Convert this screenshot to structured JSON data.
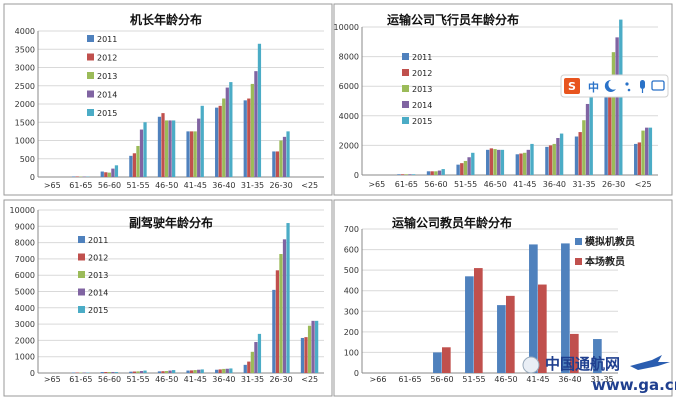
{
  "colors": {
    "2011": "#4f81bd",
    "2012": "#c0504d",
    "2013": "#9bbb59",
    "2014": "#8064a2",
    "2015": "#4bacc6",
    "sim": "#4f81bd",
    "base": "#c0504d"
  },
  "toolbar": {
    "s": "S",
    "zh": "中",
    "icons": [
      "moon-icon",
      "punctuation-icon",
      "microphone-icon",
      "keyboard-icon"
    ]
  },
  "watermark": {
    "brand": "中国通航网",
    "url": "www.ga.cn"
  },
  "chart_data": [
    {
      "type": "bar",
      "title": "机长年龄分布",
      "ylim": [
        0,
        4000
      ],
      "yticks": [
        "0",
        "500",
        "1000",
        "1500",
        "2000",
        "2500",
        "3000",
        "3500",
        "4000"
      ],
      "categories": [
        ">65",
        "61-65",
        "56-60",
        "51-55",
        "46-50",
        "41-45",
        "36-40",
        "31-35",
        "26-30",
        "<25"
      ],
      "legend_position": "top-left",
      "series": [
        {
          "name": "2011",
          "values": [
            0,
            15,
            150,
            580,
            1650,
            1250,
            1900,
            2100,
            700,
            0
          ]
        },
        {
          "name": "2012",
          "values": [
            0,
            15,
            130,
            650,
            1750,
            1250,
            1950,
            2150,
            700,
            0
          ]
        },
        {
          "name": "2013",
          "values": [
            0,
            10,
            120,
            850,
            1550,
            1250,
            2150,
            2550,
            1000,
            0
          ]
        },
        {
          "name": "2014",
          "values": [
            0,
            10,
            230,
            1300,
            1550,
            1600,
            2450,
            2900,
            1100,
            0
          ]
        },
        {
          "name": "2015",
          "values": [
            0,
            10,
            320,
            1500,
            1550,
            1950,
            2600,
            3650,
            1250,
            0
          ]
        }
      ]
    },
    {
      "type": "bar",
      "title": "运输公司飞行员年龄分布",
      "ylim": [
        0,
        10000
      ],
      "yticks": [
        "0",
        "2000",
        "4000",
        "6000",
        "8000",
        "10000"
      ],
      "categories": [
        ">65",
        "61-65",
        "56-60",
        "51-55",
        "46-50",
        "41-45",
        "36-40",
        "31-35",
        "26-30",
        "<25"
      ],
      "legend_position": "top-left",
      "series": [
        {
          "name": "2011",
          "values": [
            0,
            50,
            250,
            700,
            1700,
            1400,
            1900,
            2600,
            5700,
            2100
          ]
        },
        {
          "name": "2012",
          "values": [
            0,
            50,
            250,
            800,
            1800,
            1450,
            2000,
            2900,
            6500,
            2200
          ]
        },
        {
          "name": "2013",
          "values": [
            0,
            50,
            250,
            950,
            1750,
            1500,
            2100,
            3700,
            8300,
            3000
          ]
        },
        {
          "name": "2014",
          "values": [
            0,
            50,
            300,
            1200,
            1700,
            1700,
            2500,
            4800,
            9300,
            3200
          ]
        },
        {
          "name": "2015",
          "values": [
            0,
            50,
            400,
            1500,
            1700,
            2100,
            2800,
            5500,
            10500,
            3200
          ]
        }
      ]
    },
    {
      "type": "bar",
      "title": "副驾驶年龄分布",
      "ylim": [
        0,
        10000
      ],
      "yticks": [
        "0",
        "1000",
        "2000",
        "3000",
        "4000",
        "5000",
        "6000",
        "7000",
        "8000",
        "9000",
        "10000"
      ],
      "categories": [
        ">65",
        "61-65",
        "56-60",
        "51-55",
        "46-50",
        "41-45",
        "36-40",
        "31-35",
        "26-30",
        "<25"
      ],
      "legend_position": "top-left",
      "series": [
        {
          "name": "2011",
          "values": [
            0,
            30,
            60,
            80,
            100,
            150,
            200,
            500,
            5100,
            2150
          ]
        },
        {
          "name": "2012",
          "values": [
            0,
            30,
            60,
            90,
            110,
            160,
            220,
            700,
            6300,
            2200
          ]
        },
        {
          "name": "2013",
          "values": [
            0,
            30,
            60,
            100,
            120,
            180,
            250,
            1300,
            7300,
            2900
          ]
        },
        {
          "name": "2014",
          "values": [
            0,
            30,
            60,
            120,
            150,
            200,
            260,
            1900,
            8200,
            3200
          ]
        },
        {
          "name": "2015",
          "values": [
            0,
            30,
            60,
            150,
            180,
            220,
            280,
            2400,
            9200,
            3200
          ]
        }
      ]
    },
    {
      "type": "bar",
      "title": "运输公司教员年龄分布",
      "ylim": [
        0,
        700
      ],
      "yticks": [
        "0",
        "100",
        "200",
        "300",
        "400",
        "500",
        "600",
        "700"
      ],
      "categories": [
        ">66",
        "61-65",
        "56-60",
        "51-55",
        "46-50",
        "41-45",
        "36-40",
        "31-35"
      ],
      "legend_position": "right",
      "series": [
        {
          "name": "模拟机教员",
          "values": [
            0,
            0,
            100,
            470,
            330,
            625,
            630,
            165
          ]
        },
        {
          "name": "本场教员",
          "values": [
            0,
            0,
            125,
            510,
            375,
            430,
            190,
            0
          ]
        }
      ]
    }
  ]
}
